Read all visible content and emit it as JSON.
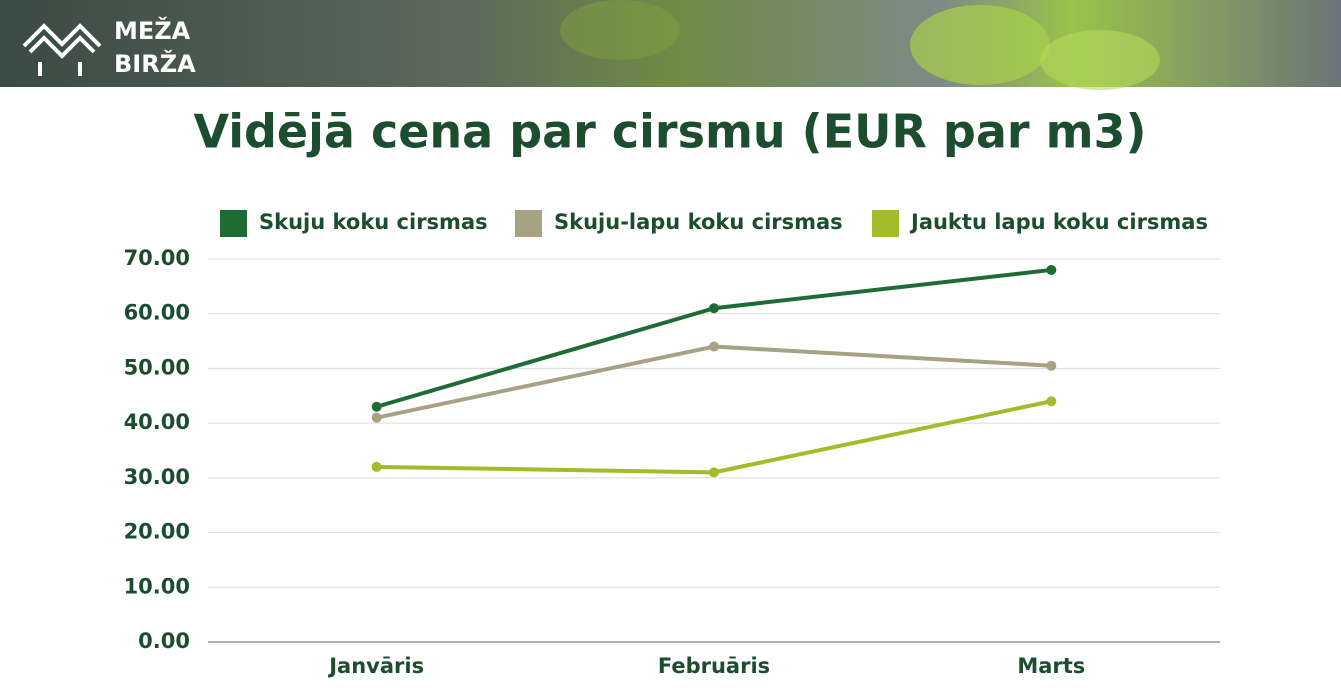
{
  "logo": {
    "lines": [
      "MEŽA",
      "BIRŽA"
    ]
  },
  "chart_data": {
    "type": "line",
    "title": "Vidējā cena par cirsmu (EUR par m3)",
    "categories": [
      "Janvāris",
      "Februāris",
      "Marts"
    ],
    "series": [
      {
        "name": "Skuju koku cirsmas",
        "color": "#1e6b35",
        "values": [
          43,
          61,
          68
        ]
      },
      {
        "name": "Skuju-lapu koku cirsmas",
        "color": "#a6a283",
        "values": [
          41,
          54,
          50.5
        ]
      },
      {
        "name": "Jauktu lapu koku cirsmas",
        "color": "#a4bb2a",
        "values": [
          32,
          31,
          44
        ]
      }
    ],
    "ylim": [
      0,
      70
    ],
    "yticks": [
      {
        "value": 0,
        "label": "0.00"
      },
      {
        "value": 10,
        "label": "10.00"
      },
      {
        "value": 20,
        "label": "20.00"
      },
      {
        "value": 30,
        "label": "30.00"
      },
      {
        "value": 40,
        "label": "40.00"
      },
      {
        "value": 50,
        "label": "50.00"
      },
      {
        "value": 60,
        "label": "60.00"
      },
      {
        "value": 70,
        "label": "70.00"
      }
    ],
    "grid": true,
    "legend": "top"
  }
}
